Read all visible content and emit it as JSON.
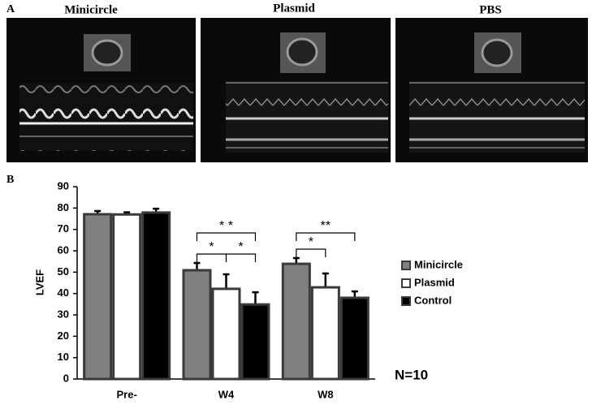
{
  "panel_a": {
    "label": "A",
    "titles": [
      "Minicircle",
      "Plasmid",
      "PBS"
    ]
  },
  "chart_data": {
    "type": "bar",
    "panel_label": "B",
    "ylabel": "LVEF",
    "categories": [
      "Pre-",
      "W4",
      "W8"
    ],
    "series": [
      {
        "name": "Minicircle",
        "color": "#808080",
        "values": [
          77.1,
          50.9,
          53.9
        ],
        "errors": [
          1.5,
          3.4,
          2.7
        ]
      },
      {
        "name": "Plasmid",
        "color": "#ffffff",
        "values": [
          77.0,
          42.2,
          42.9
        ],
        "errors": [
          1.0,
          6.8,
          6.5
        ]
      },
      {
        "name": "Control",
        "color": "#000000",
        "values": [
          77.9,
          34.9,
          38.0
        ],
        "errors": [
          1.8,
          5.7,
          3.0
        ]
      }
    ],
    "ylim": [
      0,
      90
    ],
    "yticks": [
      0,
      10,
      20,
      30,
      40,
      50,
      60,
      70,
      80,
      90
    ],
    "annotations": [
      "* *",
      "*",
      "*",
      "**",
      "*"
    ],
    "note": "N=10"
  }
}
